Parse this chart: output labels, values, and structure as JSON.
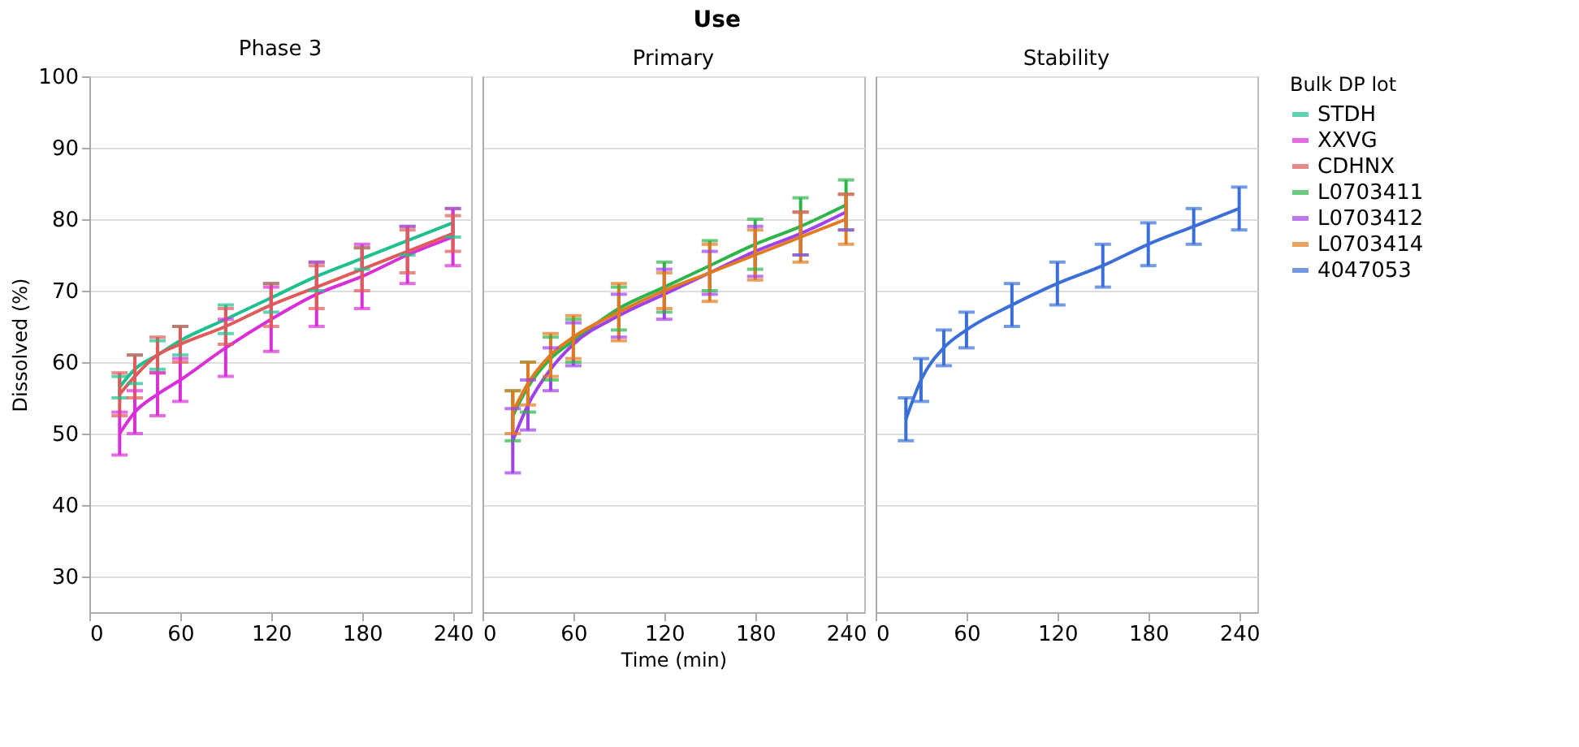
{
  "chart_data": [
    {
      "type": "line",
      "subtitle": "Phase 3",
      "ylabel": "Dissolved (%)",
      "xlim": [
        0,
        252
      ],
      "xticks": [
        0,
        60,
        120,
        180,
        240
      ],
      "ylim": [
        25,
        100
      ],
      "yticks": [
        30,
        40,
        50,
        60,
        70,
        80,
        90,
        100
      ],
      "grid": "y",
      "marker": "none",
      "tick_labels": "xy",
      "legend": "right",
      "x": [
        20,
        30,
        45,
        60,
        90,
        120,
        150,
        180,
        210,
        240
      ],
      "series": [
        {
          "name": "STDH",
          "color": "#1fbf8f",
          "values": [
            56.5,
            59,
            61,
            63,
            66,
            69,
            72,
            74.5,
            77,
            79.5
          ],
          "errors": [
            1.5,
            2,
            2,
            2,
            2,
            2,
            2,
            1.5,
            2,
            2
          ]
        },
        {
          "name": "XXVG",
          "color": "#d82fd8",
          "values": [
            50,
            53,
            55.5,
            57.5,
            62,
            66,
            69.5,
            72,
            75,
            77.5
          ],
          "errors": [
            3,
            3,
            3,
            3,
            4,
            4.5,
            4.5,
            4.5,
            4,
            4
          ]
        },
        {
          "name": "CDHNX",
          "color": "#e05a5a",
          "values": [
            55.5,
            58,
            61,
            62.5,
            65,
            68,
            70.5,
            73,
            75.5,
            78
          ],
          "errors": [
            3,
            3,
            2.5,
            2.5,
            2.5,
            3,
            3,
            3,
            3,
            2.5
          ]
        }
      ]
    },
    {
      "type": "line",
      "title": "Use",
      "subtitle": "Primary",
      "xlabel": "Time (min)",
      "xlim": [
        0,
        252
      ],
      "xticks": [
        0,
        60,
        120,
        180,
        240
      ],
      "ylim": [
        25,
        100
      ],
      "yticks": [
        30,
        40,
        50,
        60,
        70,
        80,
        90,
        100
      ],
      "grid": "y",
      "marker": "none",
      "tick_labels": "x",
      "legend": "right",
      "x": [
        20,
        30,
        45,
        60,
        90,
        120,
        150,
        180,
        210,
        240
      ],
      "series": [
        {
          "name": "L0703411",
          "color": "#2db54a",
          "values": [
            52.5,
            56.5,
            60.5,
            63,
            67.5,
            70.5,
            73.5,
            76.5,
            79,
            82
          ],
          "errors": [
            3.5,
            3.5,
            3,
            3,
            3,
            3.5,
            3.5,
            3.5,
            4,
            3.5
          ]
        },
        {
          "name": "L0703412",
          "color": "#a040e8",
          "values": [
            49,
            54,
            59,
            62.5,
            66.5,
            69.5,
            72.5,
            75.5,
            78,
            81
          ],
          "errors": [
            4.5,
            3.5,
            3,
            3,
            3,
            3.5,
            3,
            3.5,
            3,
            2.5
          ]
        },
        {
          "name": "L0703414",
          "color": "#e07b20",
          "values": [
            53,
            57,
            61,
            63.5,
            67,
            70,
            72.5,
            75,
            77.5,
            80
          ],
          "errors": [
            3,
            3,
            3,
            3,
            4,
            2.5,
            4,
            3.5,
            3.5,
            3.5
          ]
        }
      ]
    },
    {
      "type": "line",
      "subtitle": "Stability",
      "xlim": [
        0,
        252
      ],
      "xticks": [
        0,
        60,
        120,
        180,
        240
      ],
      "ylim": [
        25,
        100
      ],
      "yticks": [
        30,
        40,
        50,
        60,
        70,
        80,
        90,
        100
      ],
      "grid": "y",
      "marker": "none",
      "tick_labels": "x",
      "legend": "right",
      "legend_title": "Bulk DP lot",
      "x": [
        20,
        30,
        45,
        60,
        90,
        120,
        150,
        180,
        210,
        240
      ],
      "series": [
        {
          "name": "4047053",
          "color": "#3a6fd8",
          "values": [
            52,
            57.5,
            62,
            64.5,
            68,
            71,
            73.5,
            76.5,
            79,
            81.5
          ],
          "errors": [
            3,
            3,
            2.5,
            2.5,
            3,
            3,
            3,
            3,
            2.5,
            3
          ]
        }
      ]
    }
  ]
}
